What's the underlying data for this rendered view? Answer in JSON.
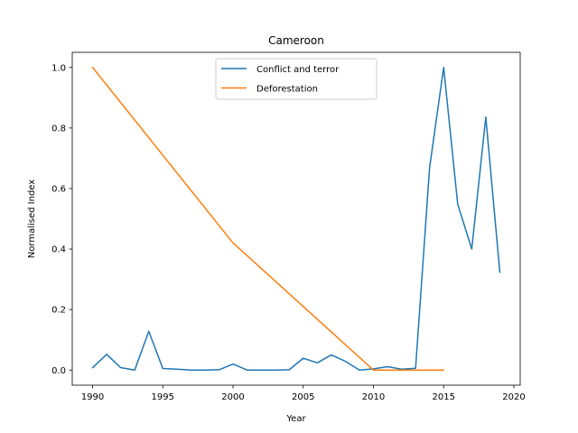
{
  "chart_data": {
    "type": "line",
    "title": "Cameroon",
    "xlabel": "Year",
    "ylabel": "Normalised Index",
    "xlim": [
      1988.55,
      2020.45
    ],
    "ylim": [
      -0.05,
      1.05
    ],
    "xticks": [
      1990,
      1995,
      2000,
      2005,
      2010,
      2015,
      2020
    ],
    "yticks": [
      0.0,
      0.2,
      0.4,
      0.6,
      0.8,
      1.0
    ],
    "ytick_labels": [
      "0.0",
      "0.2",
      "0.4",
      "0.6",
      "0.8",
      "1.0"
    ],
    "grid": false,
    "legend_position": "top-center",
    "series": [
      {
        "name": "Conflict and terror",
        "color": "#1f77b4",
        "x": [
          1990,
          1991,
          1992,
          1993,
          1994,
          1995,
          1996,
          1997,
          1998,
          1999,
          2000,
          2001,
          2002,
          2003,
          2004,
          2005,
          2006,
          2007,
          2008,
          2009,
          2010,
          2011,
          2012,
          2013,
          2014,
          2015,
          2016,
          2017,
          2018,
          2019
        ],
        "y": [
          0.008,
          0.052,
          0.008,
          0.0,
          0.128,
          0.005,
          0.003,
          0.0,
          0.0,
          0.001,
          0.02,
          0.0,
          0.0,
          0.0,
          0.001,
          0.039,
          0.024,
          0.05,
          0.029,
          0.0,
          0.004,
          0.011,
          0.003,
          0.006,
          0.67,
          1.0,
          0.548,
          0.4,
          0.836,
          0.323
        ]
      },
      {
        "name": "Deforestation",
        "color": "#ff7f0e",
        "x": [
          1990,
          2000,
          2010,
          2011,
          2012,
          2013,
          2014,
          2015
        ],
        "y": [
          1.0,
          0.42,
          0.0,
          0.0,
          0.0,
          0.0,
          0.0,
          0.0
        ]
      }
    ]
  }
}
